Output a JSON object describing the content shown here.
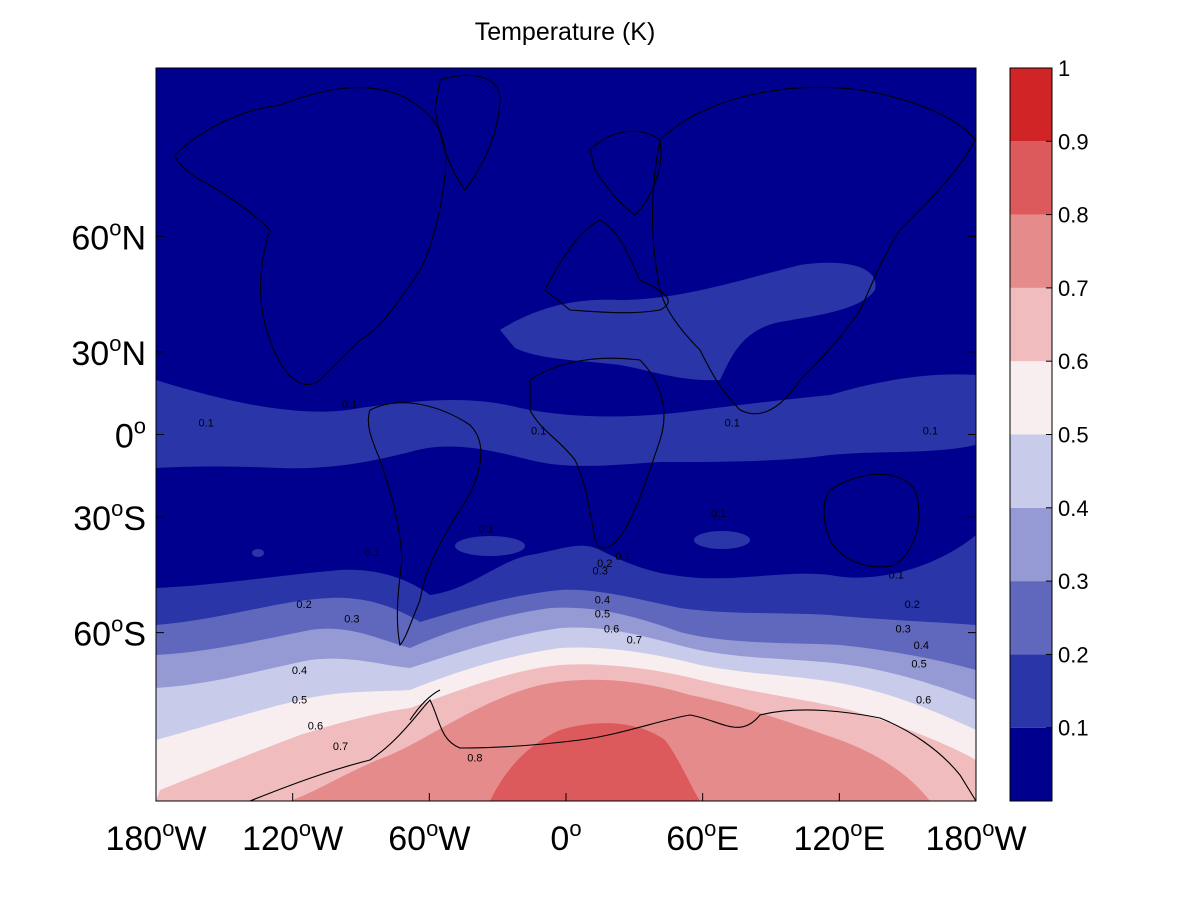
{
  "title": "Temperature (K)",
  "map": {
    "projection": "mercator",
    "lon_range": [
      -180,
      180
    ],
    "lat_range": [
      -80,
      80
    ],
    "x_ticks": [
      {
        "lon": -180,
        "deg": "180",
        "hemi": "W"
      },
      {
        "lon": -120,
        "deg": "120",
        "hemi": "W"
      },
      {
        "lon": -60,
        "deg": "60",
        "hemi": "W"
      },
      {
        "lon": 0,
        "deg": "0",
        "hemi": ""
      },
      {
        "lon": 60,
        "deg": "60",
        "hemi": "E"
      },
      {
        "lon": 120,
        "deg": "120",
        "hemi": "E"
      },
      {
        "lon": 180,
        "deg": "180",
        "hemi": "W"
      }
    ],
    "y_ticks": [
      {
        "lat": 60,
        "deg": "60",
        "hemi": "N"
      },
      {
        "lat": 30,
        "deg": "30",
        "hemi": "N"
      },
      {
        "lat": 0,
        "deg": "0",
        "hemi": ""
      },
      {
        "lat": -30,
        "deg": "30",
        "hemi": "S"
      },
      {
        "lat": -60,
        "deg": "60",
        "hemi": "S"
      }
    ],
    "contour_labels": [
      {
        "text": "0.1",
        "lon": -158,
        "lat": 3
      },
      {
        "text": "0.1",
        "lon": -95,
        "lat": 10
      },
      {
        "text": "0.1",
        "lon": -12,
        "lat": 0
      },
      {
        "text": "0.1",
        "lon": 73,
        "lat": 3
      },
      {
        "text": "0.1",
        "lon": 160,
        "lat": 0
      },
      {
        "text": "0.1",
        "lon": -35,
        "lat": -35
      },
      {
        "text": "0.1",
        "lon": 67,
        "lat": -30
      },
      {
        "text": "0.1",
        "lon": -85,
        "lat": -42
      },
      {
        "text": "0.1",
        "lon": 25,
        "lat": -43
      },
      {
        "text": "0.1",
        "lon": 145,
        "lat": -48
      },
      {
        "text": "0.2",
        "lon": -115,
        "lat": -55
      },
      {
        "text": "0.2",
        "lon": 17,
        "lat": -45
      },
      {
        "text": "0.2",
        "lon": 152,
        "lat": -55
      },
      {
        "text": "0.3",
        "lon": -94,
        "lat": -58
      },
      {
        "text": "0.3",
        "lon": 15,
        "lat": -47
      },
      {
        "text": "0.3",
        "lon": 148,
        "lat": -60
      },
      {
        "text": "0.4",
        "lon": 16,
        "lat": -54
      },
      {
        "text": "0.4",
        "lon": -117,
        "lat": -67
      },
      {
        "text": "0.4",
        "lon": 156,
        "lat": -63
      },
      {
        "text": "0.5",
        "lon": 16,
        "lat": -57
      },
      {
        "text": "0.5",
        "lon": -117,
        "lat": -71
      },
      {
        "text": "0.5",
        "lon": 155,
        "lat": -66
      },
      {
        "text": "0.6",
        "lon": 20,
        "lat": -60
      },
      {
        "text": "0.6",
        "lon": -110,
        "lat": -74
      },
      {
        "text": "0.6",
        "lon": 157,
        "lat": -71
      },
      {
        "text": "0.7",
        "lon": 30,
        "lat": -62
      },
      {
        "text": "0.7",
        "lon": -99,
        "lat": -76
      },
      {
        "text": "0.8",
        "lon": -40,
        "lat": -77
      }
    ]
  },
  "colorbar": {
    "ticks": [
      "0.1",
      "0.2",
      "0.3",
      "0.4",
      "0.5",
      "0.6",
      "0.7",
      "0.8",
      "0.9",
      "1"
    ],
    "range": [
      0,
      1
    ],
    "levels": [
      {
        "min": 0.0,
        "max": 0.1,
        "color": "#00008f"
      },
      {
        "min": 0.1,
        "max": 0.2,
        "color": "#2a35a8"
      },
      {
        "min": 0.2,
        "max": 0.3,
        "color": "#5f68bd"
      },
      {
        "min": 0.3,
        "max": 0.4,
        "color": "#9599d4"
      },
      {
        "min": 0.4,
        "max": 0.5,
        "color": "#c9cbea"
      },
      {
        "min": 0.5,
        "max": 0.6,
        "color": "#f8eef0"
      },
      {
        "min": 0.6,
        "max": 0.7,
        "color": "#f1bcbe"
      },
      {
        "min": 0.7,
        "max": 0.8,
        "color": "#e68b8c"
      },
      {
        "min": 0.8,
        "max": 0.9,
        "color": "#dc5a5b"
      },
      {
        "min": 0.9,
        "max": 1.0,
        "color": "#d02427"
      }
    ]
  }
}
